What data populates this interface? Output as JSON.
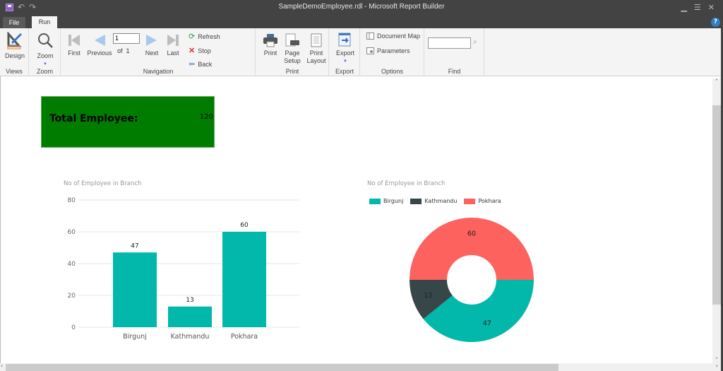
{
  "window": {
    "title": "SampleDemoEmployee.rdl - Microsoft Report Builder",
    "controls": [
      "minimize",
      "maximize",
      "close"
    ]
  },
  "tabs": [
    {
      "label": "File",
      "active": false
    },
    {
      "label": "Run",
      "active": true
    }
  ],
  "ribbon": {
    "views": {
      "label": "Views",
      "design": "Design"
    },
    "zoom": {
      "label": "Zoom",
      "zoom": "Zoom"
    },
    "navigation": {
      "label": "Navigation",
      "first": "First",
      "previous": "Previous",
      "page_value": "1",
      "of_label": "of",
      "total_pages": "1",
      "next": "Next",
      "last": "Last",
      "refresh": "Refresh",
      "stop": "Stop",
      "back": "Back"
    },
    "print": {
      "label": "Print",
      "print": "Print",
      "page_setup_1": "Page",
      "page_setup_2": "Setup",
      "print_layout_1": "Print",
      "print_layout_2": "Layout"
    },
    "export": {
      "label": "Export",
      "export": "Export"
    },
    "options": {
      "label": "Options",
      "document_map": "Document Map",
      "parameters": "Parameters"
    },
    "find": {
      "label": "Find",
      "value": ""
    }
  },
  "report": {
    "kpi": {
      "label": "Total Employee:",
      "value": "120",
      "color": "#007c00"
    }
  },
  "chart_data": [
    {
      "type": "bar",
      "title": "No of Employee in Branch",
      "categories": [
        "Birgunj",
        "Kathmandu",
        "Pokhara"
      ],
      "values": [
        47,
        13,
        60
      ],
      "ylim": [
        0,
        80
      ],
      "yticks": [
        "0",
        "20",
        "40",
        "60",
        "80"
      ],
      "grid": true,
      "color": "#01b8aa",
      "xlabel": "",
      "ylabel": ""
    },
    {
      "type": "pie",
      "variant": "donut",
      "title": "No of Employee in Branch",
      "categories": [
        "Birgunj",
        "Kathmandu",
        "Pokhara"
      ],
      "values": [
        47,
        13,
        60
      ],
      "colors": [
        "#01b8aa",
        "#374649",
        "#fd625e"
      ],
      "legend_position": "top-left"
    }
  ]
}
